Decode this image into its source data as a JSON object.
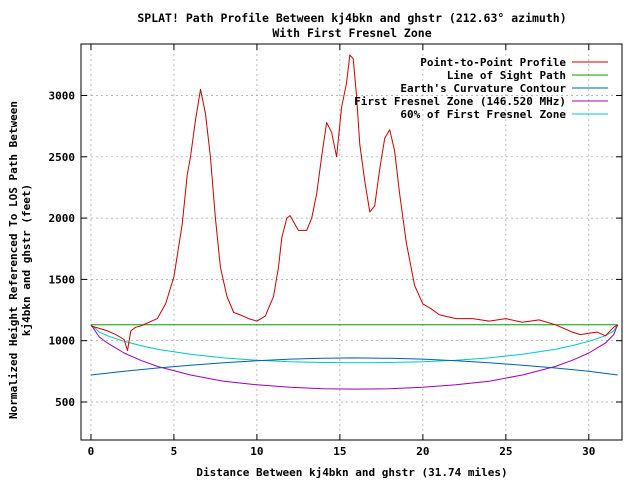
{
  "chart_data": {
    "type": "line",
    "title": "SPLAT! Path Profile Between kj4bkn and ghstr (212.63° azimuth)",
    "subtitle": "With First Fresnel Zone",
    "xlabel": "Distance Between kj4bkn and ghstr (31.74 miles)",
    "ylabel_line1": "Normalized Height Referenced To LOS Path Between",
    "ylabel_line2": "kj4bkn and ghstr (feet)",
    "xlim": [
      -0.6,
      32.0
    ],
    "ylim": [
      190,
      3420
    ],
    "xticks": [
      0,
      5,
      10,
      15,
      20,
      25,
      30
    ],
    "yticks": [
      500,
      1000,
      1500,
      2000,
      2500,
      3000
    ],
    "grid": true,
    "legend_position": "top-right",
    "series": [
      {
        "name": "Point-to-Point Profile",
        "color": "#cc0000",
        "x": [
          0,
          0.5,
          1.0,
          1.5,
          2.0,
          2.2,
          2.4,
          2.7,
          3.0,
          3.5,
          4.0,
          4.5,
          5.0,
          5.5,
          5.8,
          6.0,
          6.3,
          6.6,
          6.9,
          7.2,
          7.5,
          7.8,
          8.2,
          8.6,
          9.0,
          9.5,
          10.0,
          10.5,
          11.0,
          11.3,
          11.5,
          11.8,
          12.0,
          12.5,
          13.0,
          13.3,
          13.6,
          13.9,
          14.2,
          14.5,
          14.8,
          15.1,
          15.4,
          15.6,
          15.8,
          16.0,
          16.2,
          16.5,
          16.8,
          17.1,
          17.4,
          17.7,
          18.0,
          18.3,
          18.6,
          19.0,
          19.5,
          20.0,
          20.5,
          21.0,
          22.0,
          23.0,
          24.0,
          25.0,
          26.0,
          27.0,
          28.0,
          29.0,
          29.5,
          30.0,
          30.5,
          31.0,
          31.5,
          31.74
        ],
        "y": [
          1120,
          1100,
          1080,
          1050,
          1010,
          920,
          1080,
          1110,
          1120,
          1150,
          1180,
          1300,
          1520,
          1950,
          2350,
          2500,
          2800,
          3050,
          2850,
          2500,
          2000,
          1600,
          1360,
          1230,
          1210,
          1180,
          1160,
          1200,
          1360,
          1600,
          1840,
          2000,
          2020,
          1900,
          1900,
          2000,
          2200,
          2500,
          2780,
          2700,
          2500,
          2900,
          3100,
          3330,
          3300,
          3000,
          2600,
          2300,
          2050,
          2100,
          2400,
          2650,
          2720,
          2550,
          2200,
          1800,
          1450,
          1300,
          1260,
          1210,
          1180,
          1180,
          1160,
          1180,
          1150,
          1170,
          1130,
          1070,
          1050,
          1060,
          1070,
          1040,
          1110,
          1130
        ]
      },
      {
        "name": "Line of Sight Path",
        "color": "#00a000",
        "x": [
          0,
          31.74
        ],
        "y": [
          1130,
          1130
        ]
      },
      {
        "name": "Earth's Curvature Contour",
        "color": "#0060b0",
        "x": [
          0,
          2,
          4,
          6,
          8,
          10,
          12,
          14,
          15.87,
          18,
          20,
          22,
          24,
          26,
          28,
          30,
          31.74
        ],
        "y": [
          720,
          750,
          777,
          800,
          820,
          837,
          850,
          856,
          860,
          856,
          850,
          837,
          820,
          800,
          777,
          750,
          720
        ]
      },
      {
        "name": "First Fresnel Zone (146.520 MHz)",
        "color": "#a000c0",
        "x": [
          0,
          0.5,
          1,
          2,
          3,
          4,
          6,
          8,
          10,
          12,
          14,
          15.87,
          18,
          20,
          22,
          24,
          26,
          28,
          29,
          30,
          31,
          31.5,
          31.74
        ],
        "y": [
          1130,
          1030,
          980,
          900,
          840,
          790,
          720,
          670,
          640,
          620,
          608,
          605,
          608,
          620,
          640,
          670,
          720,
          790,
          840,
          900,
          980,
          1050,
          1130
        ]
      },
      {
        "name": "60% of First Fresnel Zone",
        "color": "#00c8c8",
        "x": [
          0,
          0.5,
          1,
          2,
          3,
          4,
          6,
          8,
          10,
          12,
          14,
          15.87,
          18,
          20,
          22,
          24,
          26,
          28,
          29,
          30,
          31,
          31.5,
          31.74
        ],
        "y": [
          1130,
          1070,
          1040,
          995,
          960,
          930,
          890,
          860,
          840,
          828,
          822,
          820,
          822,
          828,
          840,
          860,
          890,
          930,
          960,
          995,
          1040,
          1080,
          1130
        ]
      }
    ]
  }
}
